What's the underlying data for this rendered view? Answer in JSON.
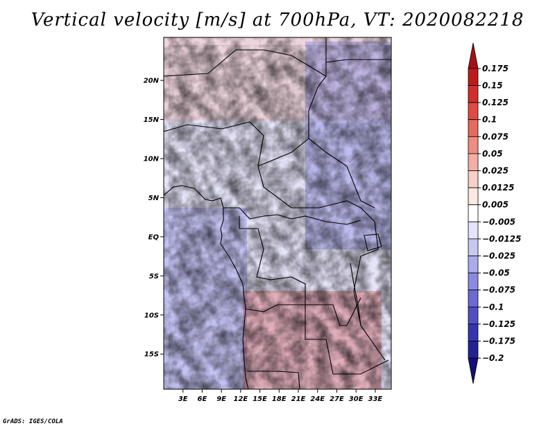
{
  "title": "Vertical velocity [m/s] at 700hPa, VT: 2020082218",
  "footer": "GrADS: IGES/COLA",
  "map": {
    "lon_range": [
      0,
      35.5
    ],
    "lat_range": [
      -19.5,
      25.5
    ],
    "lat_labels": [
      "20N",
      "15N",
      "10N",
      "5N",
      "EQ",
      "5S",
      "10S",
      "15S"
    ],
    "lat_values": [
      20,
      15,
      10,
      5,
      0,
      -5,
      -10,
      -15
    ],
    "lon_labels": [
      "3E",
      "6E",
      "9E",
      "12E",
      "15E",
      "18E",
      "21E",
      "24E",
      "27E",
      "30E",
      "33E"
    ],
    "lon_values": [
      3,
      6,
      9,
      12,
      15,
      18,
      21,
      24,
      27,
      30,
      33
    ]
  },
  "legend": {
    "labels": [
      "0.175",
      "0.15",
      "0.125",
      "0.1",
      "0.075",
      "0.05",
      "0.025",
      "0.0125",
      "0.005",
      "−0.005",
      "−0.0125",
      "−0.025",
      "−0.05",
      "−0.075",
      "−0.1",
      "−0.125",
      "−0.175",
      "−0.2"
    ],
    "colors": [
      "#a50f15",
      "#c0191c",
      "#d42b2b",
      "#e04a42",
      "#e86a5e",
      "#f08c80",
      "#f5aea4",
      "#f9cfc8",
      "#fde8e4",
      "#ffffff",
      "#e4e4fb",
      "#c8c8f5",
      "#aaaaee",
      "#8a8ae3",
      "#6b6bd6",
      "#4f4fc6",
      "#3535b2",
      "#222297",
      "#14107a"
    ]
  }
}
